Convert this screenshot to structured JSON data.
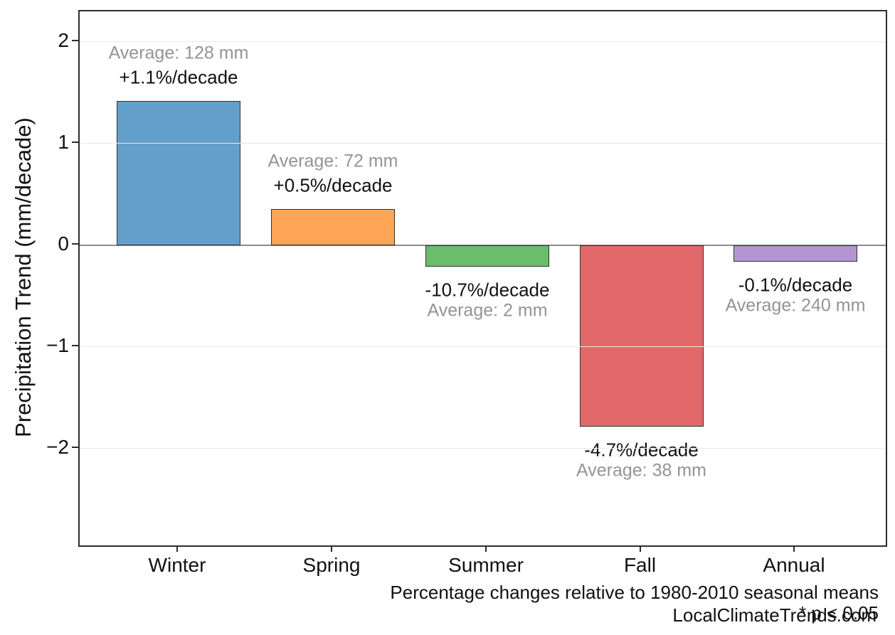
{
  "chart_data": {
    "type": "bar",
    "title": "",
    "xlabel": "",
    "ylabel": "Precipitation Trend (mm/decade)",
    "categories": [
      "Winter",
      "Spring",
      "Summer",
      "Fall",
      "Annual"
    ],
    "series": [
      {
        "name": "Precipitation trend (mm/decade)",
        "values": [
          1.42,
          0.36,
          -0.21,
          -1.78,
          -0.16
        ]
      }
    ],
    "bars": [
      {
        "category": "Winter",
        "value": 1.42,
        "pct_label": "+1.1%/decade",
        "avg_label": "Average: 128 mm",
        "color": "#62A0CB"
      },
      {
        "category": "Spring",
        "value": 0.36,
        "pct_label": "+0.5%/decade",
        "avg_label": "Average: 72 mm",
        "color": "#FFA556"
      },
      {
        "category": "Summer",
        "value": -0.21,
        "pct_label": "-10.7%/decade",
        "avg_label": "Average: 2 mm",
        "color": "#6BBC6B"
      },
      {
        "category": "Fall",
        "value": -1.78,
        "pct_label": "-4.7%/decade",
        "avg_label": "Average: 38 mm",
        "color": "#E26869"
      },
      {
        "category": "Annual",
        "value": -0.16,
        "pct_label": "-0.1%/decade",
        "avg_label": "Average: 240 mm",
        "color": "#B495D1"
      }
    ],
    "ylim": [
      -2.95,
      2.3
    ],
    "yticks": [
      {
        "value": 2,
        "label": "2"
      },
      {
        "value": 1,
        "label": "1"
      },
      {
        "value": 0,
        "label": "0"
      },
      {
        "value": -1,
        "label": "−1"
      },
      {
        "value": -2,
        "label": "−2"
      }
    ],
    "gridline_values": [
      2,
      1,
      -1,
      -2
    ],
    "zero_line": true,
    "legend_position": "none",
    "notes": [
      "Percentage changes relative to 1980-2010 seasonal means",
      "* p < 0.05"
    ],
    "watermark": "LocalClimateTrends.com"
  },
  "colors": {
    "background": "#ffffff",
    "axis_border": "#2d2d2d",
    "bar_edge": "#323232",
    "gridline": "#e8e8e8",
    "zero_line": "#8c8c8c",
    "text_primary": "#111111",
    "text_muted": "#949494"
  }
}
